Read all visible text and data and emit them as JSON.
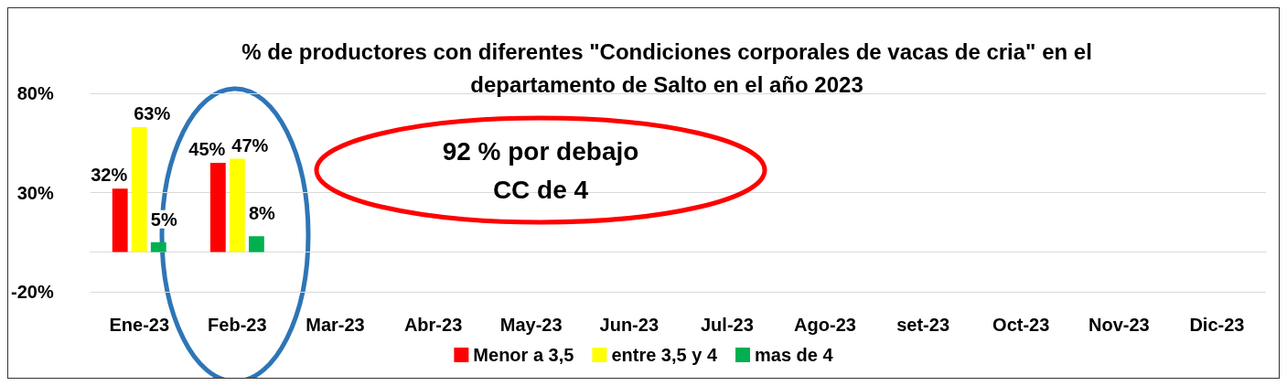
{
  "chart_data": {
    "type": "bar",
    "title": "% de productores con diferentes \"Condiciones corporales de vacas de cria\" en el\ndepartamento de Salto en el año 2023",
    "categories": [
      "Ene-23",
      "Feb-23",
      "Mar-23",
      "Abr-23",
      "May-23",
      "Jun-23",
      "Jul-23",
      "Ago-23",
      "set-23",
      "Oct-23",
      "Nov-23",
      "Dic-23"
    ],
    "series": [
      {
        "name": "Menor a 3,5",
        "color": "#ff0000",
        "values": [
          32,
          45,
          null,
          null,
          null,
          null,
          null,
          null,
          null,
          null,
          null,
          null
        ],
        "value_labels": [
          "32%",
          "45%",
          null,
          null,
          null,
          null,
          null,
          null,
          null,
          null,
          null,
          null
        ]
      },
      {
        "name": "entre 3,5 y 4",
        "color": "#ffff00",
        "values": [
          63,
          47,
          null,
          null,
          null,
          null,
          null,
          null,
          null,
          null,
          null,
          null
        ],
        "value_labels": [
          "63%",
          "47%",
          null,
          null,
          null,
          null,
          null,
          null,
          null,
          null,
          null,
          null
        ]
      },
      {
        "name": "mas de 4",
        "color": "#00b050",
        "values": [
          5,
          8,
          null,
          null,
          null,
          null,
          null,
          null,
          null,
          null,
          null,
          null
        ],
        "value_labels": [
          "5%",
          "8%",
          null,
          null,
          null,
          null,
          null,
          null,
          null,
          null,
          null,
          null
        ]
      }
    ],
    "ylim": [
      -20,
      80
    ],
    "yticks": [
      {
        "value": -20,
        "label": "-20%"
      },
      {
        "value": 30,
        "label": "30%"
      },
      {
        "value": 80,
        "label": "80%"
      }
    ],
    "grid": "y",
    "legend": "bottom",
    "annotations": [
      "92 % por debajo\nCC de 4"
    ]
  }
}
